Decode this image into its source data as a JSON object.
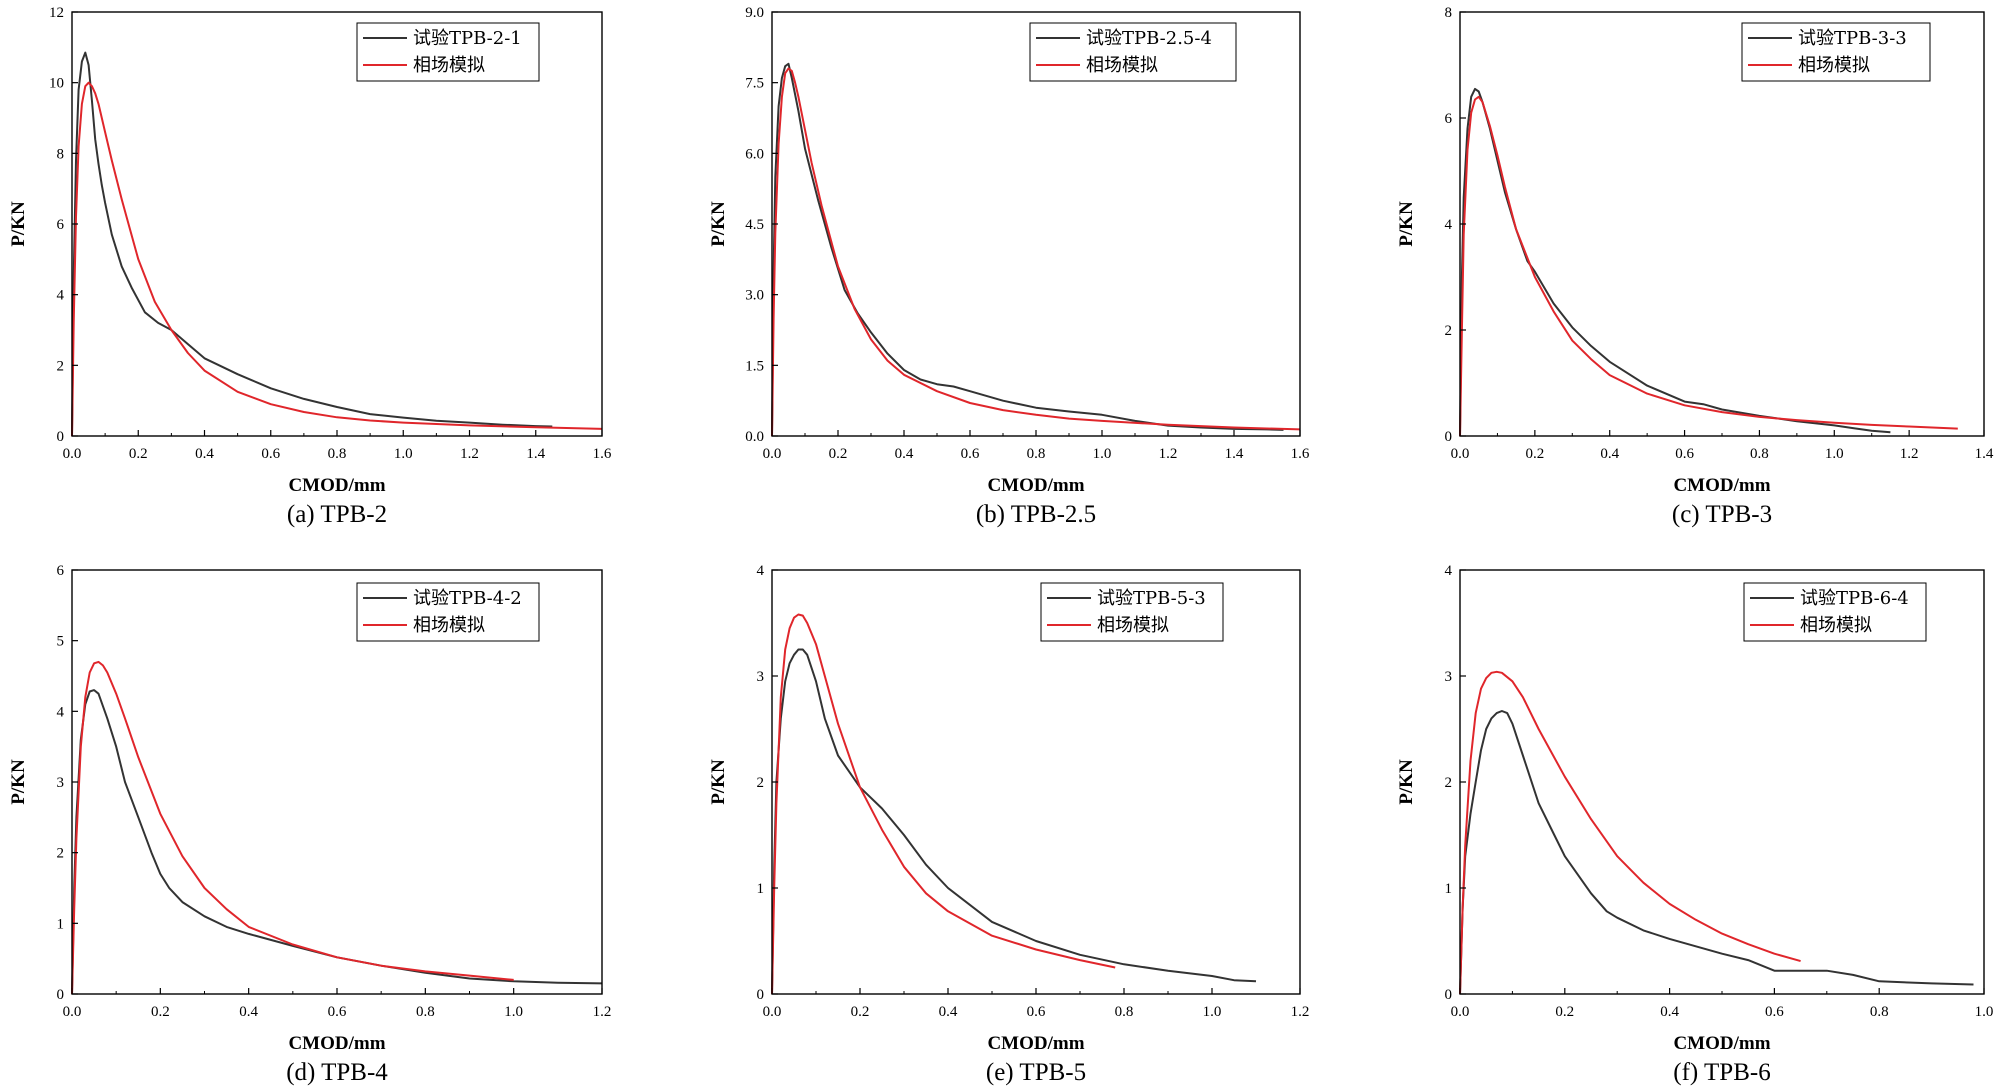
{
  "chart_data": [
    {
      "type": "line",
      "caption": "(a) TPB-2",
      "xlabel": "CMOD/mm",
      "ylabel": "P/KN",
      "xlim": [
        0,
        1.6
      ],
      "ylim": [
        0,
        12
      ],
      "xticks": [
        "0.0",
        "0.2",
        "0.4",
        "0.6",
        "0.8",
        "1.0",
        "1.2",
        "1.4",
        "1.6"
      ],
      "yticks": [
        "0",
        "2",
        "4",
        "6",
        "8",
        "10",
        "12"
      ],
      "legend_position": "top-right",
      "series": [
        {
          "name": "试验TPB-2-1",
          "color": "#333333",
          "x": [
            0,
            0.005,
            0.012,
            0.02,
            0.03,
            0.04,
            0.05,
            0.06,
            0.07,
            0.08,
            0.09,
            0.1,
            0.12,
            0.15,
            0.18,
            0.22,
            0.26,
            0.3,
            0.35,
            0.4,
            0.5,
            0.6,
            0.7,
            0.8,
            0.9,
            1.0,
            1.1,
            1.2,
            1.3,
            1.4,
            1.45
          ],
          "y": [
            0,
            4.5,
            7.8,
            9.8,
            10.6,
            10.85,
            10.5,
            9.5,
            8.4,
            7.7,
            7.1,
            6.6,
            5.7,
            4.8,
            4.2,
            3.5,
            3.2,
            3.0,
            2.6,
            2.2,
            1.75,
            1.35,
            1.05,
            0.82,
            0.62,
            0.52,
            0.43,
            0.38,
            0.32,
            0.28,
            0.27
          ]
        },
        {
          "name": "相场模拟",
          "color": "#e0262b",
          "x": [
            0,
            0.005,
            0.012,
            0.02,
            0.03,
            0.04,
            0.05,
            0.06,
            0.07,
            0.08,
            0.1,
            0.12,
            0.15,
            0.2,
            0.25,
            0.3,
            0.35,
            0.4,
            0.5,
            0.6,
            0.7,
            0.8,
            0.9,
            1.0,
            1.2,
            1.4,
            1.6
          ],
          "y": [
            0,
            3.2,
            6.2,
            8.2,
            9.4,
            9.9,
            10.0,
            9.9,
            9.7,
            9.4,
            8.6,
            7.8,
            6.7,
            5.0,
            3.8,
            3.0,
            2.35,
            1.85,
            1.25,
            0.9,
            0.68,
            0.53,
            0.44,
            0.38,
            0.3,
            0.25,
            0.2
          ]
        }
      ]
    },
    {
      "type": "line",
      "caption": "(b) TPB-2.5",
      "xlabel": "CMOD/mm",
      "ylabel": "P/KN",
      "xlim": [
        0,
        1.6
      ],
      "ylim": [
        0,
        9
      ],
      "xticks": [
        "0.0",
        "0.2",
        "0.4",
        "0.6",
        "0.8",
        "1.0",
        "1.2",
        "1.4",
        "1.6"
      ],
      "yticks": [
        "0.0",
        "1.5",
        "3.0",
        "4.5",
        "6.0",
        "7.5",
        "9.0"
      ],
      "legend_position": "top-right",
      "series": [
        {
          "name": "试验TPB-2.5-4",
          "color": "#333333",
          "x": [
            0,
            0.005,
            0.01,
            0.02,
            0.03,
            0.04,
            0.05,
            0.06,
            0.08,
            0.1,
            0.14,
            0.18,
            0.22,
            0.26,
            0.3,
            0.35,
            0.4,
            0.45,
            0.5,
            0.55,
            0.6,
            0.7,
            0.8,
            0.9,
            1.0,
            1.1,
            1.2,
            1.3,
            1.4,
            1.5,
            1.55
          ],
          "y": [
            0,
            3.5,
            5.5,
            7.0,
            7.6,
            7.85,
            7.9,
            7.6,
            6.9,
            6.1,
            5.0,
            4.0,
            3.1,
            2.6,
            2.2,
            1.75,
            1.4,
            1.2,
            1.1,
            1.05,
            0.95,
            0.75,
            0.6,
            0.52,
            0.45,
            0.32,
            0.22,
            0.18,
            0.15,
            0.14,
            0.13
          ]
        },
        {
          "name": "相场模拟",
          "color": "#e0262b",
          "x": [
            0,
            0.005,
            0.01,
            0.02,
            0.03,
            0.04,
            0.05,
            0.06,
            0.07,
            0.08,
            0.1,
            0.12,
            0.15,
            0.2,
            0.25,
            0.3,
            0.35,
            0.4,
            0.5,
            0.6,
            0.7,
            0.8,
            0.9,
            1.0,
            1.2,
            1.4,
            1.6
          ],
          "y": [
            0,
            2.5,
            4.3,
            6.2,
            7.2,
            7.7,
            7.8,
            7.75,
            7.5,
            7.2,
            6.5,
            5.8,
            4.9,
            3.6,
            2.7,
            2.05,
            1.6,
            1.3,
            0.95,
            0.7,
            0.55,
            0.45,
            0.37,
            0.32,
            0.24,
            0.18,
            0.14
          ]
        }
      ]
    },
    {
      "type": "line",
      "caption": "(c) TPB-3",
      "xlabel": "CMOD/mm",
      "ylabel": "P/KN",
      "xlim": [
        0,
        1.4
      ],
      "ylim": [
        0,
        8
      ],
      "xticks": [
        "0.0",
        "0.2",
        "0.4",
        "0.6",
        "0.8",
        "1.0",
        "1.2",
        "1.4"
      ],
      "yticks": [
        "0",
        "2",
        "4",
        "6",
        "8"
      ],
      "legend_position": "top-right",
      "series": [
        {
          "name": "试验TPB-3-3",
          "color": "#333333",
          "x": [
            0,
            0.005,
            0.01,
            0.02,
            0.03,
            0.04,
            0.05,
            0.06,
            0.08,
            0.1,
            0.12,
            0.15,
            0.18,
            0.2,
            0.25,
            0.3,
            0.35,
            0.4,
            0.5,
            0.6,
            0.65,
            0.7,
            0.8,
            0.9,
            1.0,
            1.05,
            1.1,
            1.15
          ],
          "y": [
            0,
            3.0,
            4.5,
            5.8,
            6.4,
            6.55,
            6.5,
            6.3,
            5.8,
            5.2,
            4.6,
            3.9,
            3.3,
            3.1,
            2.5,
            2.05,
            1.7,
            1.4,
            0.95,
            0.65,
            0.6,
            0.5,
            0.38,
            0.28,
            0.2,
            0.15,
            0.1,
            0.07
          ]
        },
        {
          "name": "相场模拟",
          "color": "#e0262b",
          "x": [
            0,
            0.005,
            0.01,
            0.02,
            0.03,
            0.04,
            0.05,
            0.06,
            0.08,
            0.1,
            0.12,
            0.15,
            0.2,
            0.25,
            0.3,
            0.35,
            0.4,
            0.5,
            0.6,
            0.7,
            0.8,
            0.9,
            1.0,
            1.1,
            1.2,
            1.33
          ],
          "y": [
            0,
            2.0,
            3.8,
            5.4,
            6.1,
            6.35,
            6.4,
            6.3,
            5.85,
            5.3,
            4.7,
            3.9,
            3.0,
            2.35,
            1.8,
            1.45,
            1.15,
            0.8,
            0.58,
            0.45,
            0.36,
            0.3,
            0.25,
            0.21,
            0.18,
            0.14
          ]
        }
      ]
    },
    {
      "type": "line",
      "caption": "(d) TPB-4",
      "xlabel": "CMOD/mm",
      "ylabel": "P/KN",
      "xlim": [
        0,
        1.2
      ],
      "ylim": [
        0,
        6
      ],
      "xticks": [
        "0.0",
        "0.2",
        "0.4",
        "0.6",
        "0.8",
        "1.0",
        "1.2"
      ],
      "yticks": [
        "0",
        "1",
        "2",
        "3",
        "4",
        "5",
        "6"
      ],
      "legend_position": "top-right",
      "series": [
        {
          "name": "试验TPB-4-2",
          "color": "#333333",
          "x": [
            0,
            0.005,
            0.01,
            0.02,
            0.03,
            0.04,
            0.05,
            0.06,
            0.08,
            0.1,
            0.12,
            0.15,
            0.18,
            0.2,
            0.22,
            0.25,
            0.3,
            0.35,
            0.4,
            0.5,
            0.6,
            0.7,
            0.8,
            0.9,
            1.0,
            1.1,
            1.2
          ],
          "y": [
            0,
            1.5,
            2.5,
            3.6,
            4.1,
            4.28,
            4.3,
            4.25,
            3.9,
            3.5,
            3.0,
            2.5,
            2.0,
            1.7,
            1.5,
            1.3,
            1.1,
            0.95,
            0.85,
            0.68,
            0.52,
            0.4,
            0.3,
            0.22,
            0.18,
            0.16,
            0.15
          ]
        },
        {
          "name": "相场模拟",
          "color": "#e0262b",
          "x": [
            0,
            0.005,
            0.01,
            0.02,
            0.03,
            0.04,
            0.05,
            0.06,
            0.07,
            0.08,
            0.1,
            0.12,
            0.15,
            0.2,
            0.25,
            0.3,
            0.35,
            0.4,
            0.5,
            0.6,
            0.7,
            0.8,
            0.9,
            1.0
          ],
          "y": [
            0,
            1.2,
            2.2,
            3.5,
            4.2,
            4.55,
            4.68,
            4.7,
            4.65,
            4.55,
            4.25,
            3.9,
            3.35,
            2.55,
            1.95,
            1.5,
            1.2,
            0.95,
            0.7,
            0.52,
            0.4,
            0.32,
            0.26,
            0.2
          ]
        }
      ]
    },
    {
      "type": "line",
      "caption": "(e) TPB-5",
      "xlabel": "CMOD/mm",
      "ylabel": "P/KN",
      "xlim": [
        0,
        1.2
      ],
      "ylim": [
        0,
        4
      ],
      "xticks": [
        "0.0",
        "0.2",
        "0.4",
        "0.6",
        "0.8",
        "1.0",
        "1.2"
      ],
      "yticks": [
        "0",
        "1",
        "2",
        "3",
        "4"
      ],
      "legend_position": "top-right",
      "series": [
        {
          "name": "试验TPB-5-3",
          "color": "#333333",
          "x": [
            0,
            0.005,
            0.01,
            0.02,
            0.03,
            0.04,
            0.05,
            0.06,
            0.07,
            0.08,
            0.1,
            0.12,
            0.15,
            0.2,
            0.25,
            0.3,
            0.35,
            0.4,
            0.5,
            0.6,
            0.7,
            0.8,
            0.9,
            1.0,
            1.05,
            1.1
          ],
          "y": [
            0,
            1.2,
            2.0,
            2.6,
            2.95,
            3.12,
            3.2,
            3.25,
            3.25,
            3.2,
            2.95,
            2.6,
            2.25,
            1.95,
            1.75,
            1.5,
            1.22,
            1.0,
            0.68,
            0.5,
            0.37,
            0.28,
            0.22,
            0.17,
            0.13,
            0.12
          ]
        },
        {
          "name": "相场模拟",
          "color": "#e0262b",
          "x": [
            0,
            0.005,
            0.01,
            0.02,
            0.03,
            0.04,
            0.05,
            0.06,
            0.07,
            0.08,
            0.1,
            0.12,
            0.15,
            0.2,
            0.25,
            0.3,
            0.35,
            0.4,
            0.5,
            0.6,
            0.7,
            0.78
          ],
          "y": [
            0,
            1.0,
            1.8,
            2.8,
            3.25,
            3.45,
            3.55,
            3.58,
            3.57,
            3.5,
            3.3,
            3.0,
            2.55,
            1.95,
            1.55,
            1.2,
            0.95,
            0.78,
            0.55,
            0.42,
            0.32,
            0.25
          ]
        }
      ]
    },
    {
      "type": "line",
      "caption": "(f) TPB-6",
      "xlabel": "CMOD/mm",
      "ylabel": "P/KN",
      "xlim": [
        0,
        1.0
      ],
      "ylim": [
        0,
        4
      ],
      "xticks": [
        "0.0",
        "0.2",
        "0.4",
        "0.6",
        "0.8",
        "1.0"
      ],
      "yticks": [
        "0",
        "1",
        "2",
        "3",
        "4"
      ],
      "legend_position": "top-right",
      "series": [
        {
          "name": "试验TPB-6-4",
          "color": "#333333",
          "x": [
            0,
            0.005,
            0.01,
            0.02,
            0.03,
            0.04,
            0.05,
            0.06,
            0.07,
            0.08,
            0.09,
            0.1,
            0.12,
            0.15,
            0.18,
            0.2,
            0.25,
            0.28,
            0.3,
            0.35,
            0.4,
            0.5,
            0.55,
            0.6,
            0.7,
            0.75,
            0.8,
            0.9,
            0.98
          ],
          "y": [
            0,
            0.8,
            1.3,
            1.7,
            2.0,
            2.3,
            2.5,
            2.6,
            2.65,
            2.67,
            2.65,
            2.55,
            2.25,
            1.8,
            1.5,
            1.3,
            0.95,
            0.78,
            0.72,
            0.6,
            0.52,
            0.38,
            0.32,
            0.22,
            0.22,
            0.18,
            0.12,
            0.1,
            0.09
          ]
        },
        {
          "name": "相场模拟",
          "color": "#e0262b",
          "x": [
            0,
            0.005,
            0.01,
            0.02,
            0.03,
            0.04,
            0.05,
            0.06,
            0.07,
            0.08,
            0.1,
            0.12,
            0.15,
            0.2,
            0.25,
            0.3,
            0.35,
            0.4,
            0.45,
            0.5,
            0.55,
            0.6,
            0.65
          ],
          "y": [
            0,
            0.8,
            1.4,
            2.2,
            2.65,
            2.88,
            2.98,
            3.03,
            3.04,
            3.03,
            2.95,
            2.8,
            2.5,
            2.05,
            1.65,
            1.3,
            1.05,
            0.85,
            0.7,
            0.57,
            0.47,
            0.38,
            0.31
          ]
        }
      ]
    }
  ]
}
